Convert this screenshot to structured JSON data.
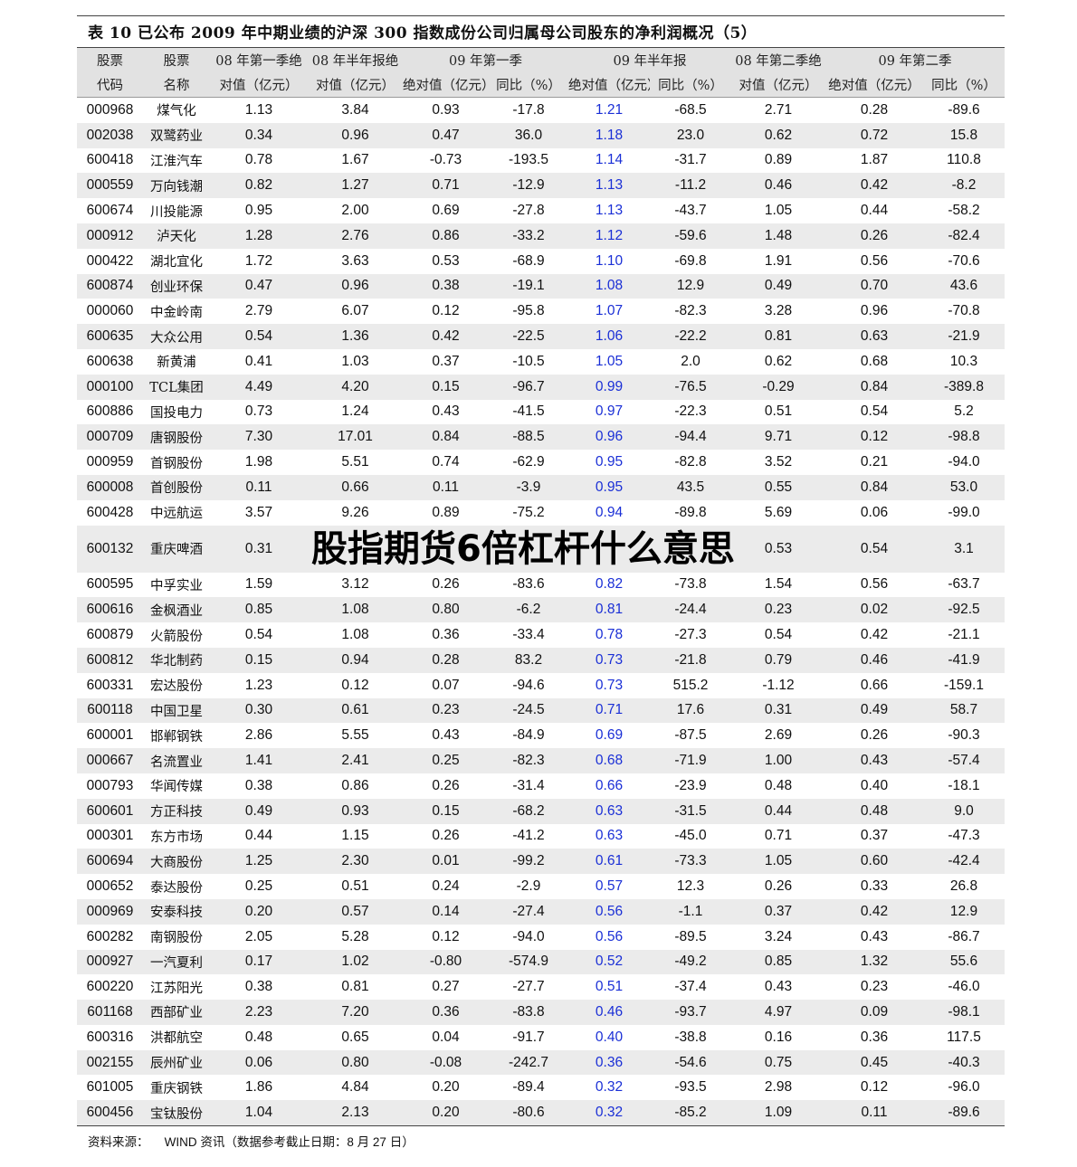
{
  "title": "表 10   已公布 2009 年中期业绩的沪深 300 指数成份公司归属母公司股东的净利润概况（5）",
  "header": {
    "code": [
      "股票",
      "代码"
    ],
    "name": [
      "股票",
      "名称"
    ],
    "q1_08": [
      "08 年第一季绝",
      "对值（亿元）"
    ],
    "h1_08": [
      "08 年半年报绝",
      "对值（亿元）"
    ],
    "q1_09": "09 年第一季",
    "h1_09": "09 年半年报",
    "q2_08": [
      "08 年第二季绝",
      "对值（亿元）"
    ],
    "q2_09": "09 年第二季",
    "abs": "绝对值（亿元）",
    "yoy": "同比（%）"
  },
  "colors": {
    "highlight": "#1a2fd6",
    "header_bg": "#e2e2e2",
    "stripe": "#ebebeb"
  },
  "rows": [
    [
      "000968",
      "煤气化",
      "1.13",
      "3.84",
      "0.93",
      "-17.8",
      "1.21",
      "-68.5",
      "2.71",
      "0.28",
      "-89.6"
    ],
    [
      "002038",
      "双鹭药业",
      "0.34",
      "0.96",
      "0.47",
      "36.0",
      "1.18",
      "23.0",
      "0.62",
      "0.72",
      "15.8"
    ],
    [
      "600418",
      "江淮汽车",
      "0.78",
      "1.67",
      "-0.73",
      "-193.5",
      "1.14",
      "-31.7",
      "0.89",
      "1.87",
      "110.8"
    ],
    [
      "000559",
      "万向钱潮",
      "0.82",
      "1.27",
      "0.71",
      "-12.9",
      "1.13",
      "-11.2",
      "0.46",
      "0.42",
      "-8.2"
    ],
    [
      "600674",
      "川投能源",
      "0.95",
      "2.00",
      "0.69",
      "-27.8",
      "1.13",
      "-43.7",
      "1.05",
      "0.44",
      "-58.2"
    ],
    [
      "000912",
      "泸天化",
      "1.28",
      "2.76",
      "0.86",
      "-33.2",
      "1.12",
      "-59.6",
      "1.48",
      "0.26",
      "-82.4"
    ],
    [
      "000422",
      "湖北宜化",
      "1.72",
      "3.63",
      "0.53",
      "-68.9",
      "1.10",
      "-69.8",
      "1.91",
      "0.56",
      "-70.6"
    ],
    [
      "600874",
      "创业环保",
      "0.47",
      "0.96",
      "0.38",
      "-19.1",
      "1.08",
      "12.9",
      "0.49",
      "0.70",
      "43.6"
    ],
    [
      "000060",
      "中金岭南",
      "2.79",
      "6.07",
      "0.12",
      "-95.8",
      "1.07",
      "-82.3",
      "3.28",
      "0.96",
      "-70.8"
    ],
    [
      "600635",
      "大众公用",
      "0.54",
      "1.36",
      "0.42",
      "-22.5",
      "1.06",
      "-22.2",
      "0.81",
      "0.63",
      "-21.9"
    ],
    [
      "600638",
      "新黄浦",
      "0.41",
      "1.03",
      "0.37",
      "-10.5",
      "1.05",
      "2.0",
      "0.62",
      "0.68",
      "10.3"
    ],
    [
      "000100",
      "TCL集团",
      "4.49",
      "4.20",
      "0.15",
      "-96.7",
      "0.99",
      "-76.5",
      "-0.29",
      "0.84",
      "-389.8"
    ],
    [
      "600886",
      "国投电力",
      "0.73",
      "1.24",
      "0.43",
      "-41.5",
      "0.97",
      "-22.3",
      "0.51",
      "0.54",
      "5.2"
    ],
    [
      "000709",
      "唐钢股份",
      "7.30",
      "17.01",
      "0.84",
      "-88.5",
      "0.96",
      "-94.4",
      "9.71",
      "0.12",
      "-98.8"
    ],
    [
      "000959",
      "首钢股份",
      "1.98",
      "5.51",
      "0.74",
      "-62.9",
      "0.95",
      "-82.8",
      "3.52",
      "0.21",
      "-94.0"
    ],
    [
      "600008",
      "首创股份",
      "0.11",
      "0.66",
      "0.11",
      "-3.9",
      "0.95",
      "43.5",
      "0.55",
      "0.84",
      "53.0"
    ],
    [
      "600428",
      "中远航运",
      "3.57",
      "9.26",
      "0.89",
      "-75.2",
      "0.94",
      "-89.8",
      "5.69",
      "0.06",
      "-99.0"
    ],
    [
      "600132",
      "重庆啤酒",
      "0.31",
      "",
      "",
      "",
      "",
      "",
      "0.53",
      "0.54",
      "3.1"
    ],
    [
      "600595",
      "中孚实业",
      "1.59",
      "3.12",
      "0.26",
      "-83.6",
      "0.82",
      "-73.8",
      "1.54",
      "0.56",
      "-63.7"
    ],
    [
      "600616",
      "金枫酒业",
      "0.85",
      "1.08",
      "0.80",
      "-6.2",
      "0.81",
      "-24.4",
      "0.23",
      "0.02",
      "-92.5"
    ],
    [
      "600879",
      "火箭股份",
      "0.54",
      "1.08",
      "0.36",
      "-33.4",
      "0.78",
      "-27.3",
      "0.54",
      "0.42",
      "-21.1"
    ],
    [
      "600812",
      "华北制药",
      "0.15",
      "0.94",
      "0.28",
      "83.2",
      "0.73",
      "-21.8",
      "0.79",
      "0.46",
      "-41.9"
    ],
    [
      "600331",
      "宏达股份",
      "1.23",
      "0.12",
      "0.07",
      "-94.6",
      "0.73",
      "515.2",
      "-1.12",
      "0.66",
      "-159.1"
    ],
    [
      "600118",
      "中国卫星",
      "0.30",
      "0.61",
      "0.23",
      "-24.5",
      "0.71",
      "17.6",
      "0.31",
      "0.49",
      "58.7"
    ],
    [
      "600001",
      "邯郸钢铁",
      "2.86",
      "5.55",
      "0.43",
      "-84.9",
      "0.69",
      "-87.5",
      "2.69",
      "0.26",
      "-90.3"
    ],
    [
      "000667",
      "名流置业",
      "1.41",
      "2.41",
      "0.25",
      "-82.3",
      "0.68",
      "-71.9",
      "1.00",
      "0.43",
      "-57.4"
    ],
    [
      "000793",
      "华闻传媒",
      "0.38",
      "0.86",
      "0.26",
      "-31.4",
      "0.66",
      "-23.9",
      "0.48",
      "0.40",
      "-18.1"
    ],
    [
      "600601",
      "方正科技",
      "0.49",
      "0.93",
      "0.15",
      "-68.2",
      "0.63",
      "-31.5",
      "0.44",
      "0.48",
      "9.0"
    ],
    [
      "000301",
      "东方市场",
      "0.44",
      "1.15",
      "0.26",
      "-41.2",
      "0.63",
      "-45.0",
      "0.71",
      "0.37",
      "-47.3"
    ],
    [
      "600694",
      "大商股份",
      "1.25",
      "2.30",
      "0.01",
      "-99.2",
      "0.61",
      "-73.3",
      "1.05",
      "0.60",
      "-42.4"
    ],
    [
      "000652",
      "泰达股份",
      "0.25",
      "0.51",
      "0.24",
      "-2.9",
      "0.57",
      "12.3",
      "0.26",
      "0.33",
      "26.8"
    ],
    [
      "000969",
      "安泰科技",
      "0.20",
      "0.57",
      "0.14",
      "-27.4",
      "0.56",
      "-1.1",
      "0.37",
      "0.42",
      "12.9"
    ],
    [
      "600282",
      "南钢股份",
      "2.05",
      "5.28",
      "0.12",
      "-94.0",
      "0.56",
      "-89.5",
      "3.24",
      "0.43",
      "-86.7"
    ],
    [
      "000927",
      "一汽夏利",
      "0.17",
      "1.02",
      "-0.80",
      "-574.9",
      "0.52",
      "-49.2",
      "0.85",
      "1.32",
      "55.6"
    ],
    [
      "600220",
      "江苏阳光",
      "0.38",
      "0.81",
      "0.27",
      "-27.7",
      "0.51",
      "-37.4",
      "0.43",
      "0.23",
      "-46.0"
    ],
    [
      "601168",
      "西部矿业",
      "2.23",
      "7.20",
      "0.36",
      "-83.8",
      "0.46",
      "-93.7",
      "4.97",
      "0.09",
      "-98.1"
    ],
    [
      "600316",
      "洪都航空",
      "0.48",
      "0.65",
      "0.04",
      "-91.7",
      "0.40",
      "-38.8",
      "0.16",
      "0.36",
      "117.5"
    ],
    [
      "002155",
      "辰州矿业",
      "0.06",
      "0.80",
      "-0.08",
      "-242.7",
      "0.36",
      "-54.6",
      "0.75",
      "0.45",
      "-40.3"
    ],
    [
      "601005",
      "重庆钢铁",
      "1.86",
      "4.84",
      "0.20",
      "-89.4",
      "0.32",
      "-93.5",
      "2.98",
      "0.12",
      "-96.0"
    ],
    [
      "600456",
      "宝钛股份",
      "1.04",
      "2.13",
      "0.20",
      "-80.6",
      "0.32",
      "-85.2",
      "1.09",
      "0.11",
      "-89.6"
    ]
  ],
  "footer": {
    "label": "资料来源：",
    "source": "WIND 资讯（数据参考截止日期：8 月 27 日）"
  },
  "overlay_text": "股指期货6倍杠杆什么意思"
}
